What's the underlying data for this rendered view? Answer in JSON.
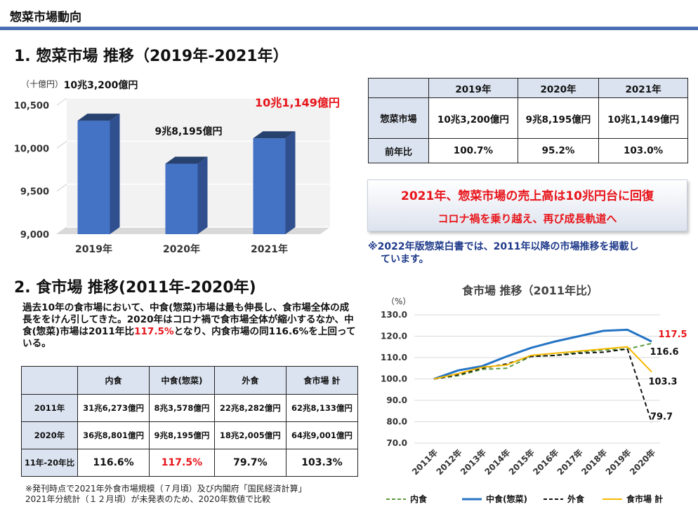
{
  "header": {
    "title": "惣菜市場動向",
    "rule_color": "#4a6fb5"
  },
  "section1": {
    "title": "1. 惣菜市場 推移（2019年-2021年）",
    "unit": "（十億円）",
    "bar_labels": [
      "10兆3,200億円",
      "9兆8,195億円",
      "10兆1,149億円"
    ]
  },
  "table1": {
    "headers": [
      "",
      "2019年",
      "2020年",
      "2021年"
    ],
    "rows": [
      {
        "label": "惣菜市場",
        "values": [
          "10兆3,200億円",
          "9兆8,195億円",
          "10兆1,149億円"
        ]
      },
      {
        "label": "前年比",
        "values": [
          "100.7%",
          "95.2%",
          "103.0%"
        ]
      }
    ]
  },
  "banner": {
    "line1": "2021年、惣菜市場の売上高は10兆円台に回復",
    "line2": "コロナ禍を乗り越え、再び成長軌道へ"
  },
  "note1": {
    "line1": "※2022年版惣菜白書では、2011年以降の市場推移を掲載し",
    "line2": "ています。"
  },
  "section2": {
    "title": "2. 食市場 推移(2011年-2020年)",
    "para_a": "過去10年の食市場において、中食(惣菜)市場は最も伸長し、食市場全体の成長ををけん引してきた。2020年はコロナ禍で食市場全体が縮小するなか、中食(惣菜)市場は2011年比",
    "para_red": "117.5%",
    "para_b": "となり、内食市場の同116.6%を上回っている。"
  },
  "table2": {
    "headers": [
      "",
      "内食",
      "中食(惣菜)",
      "外食",
      "食市場 計"
    ],
    "rows": [
      {
        "label": "2011年",
        "values": [
          "31兆6,273億円",
          "8兆3,578億円",
          "22兆8,282億円",
          "62兆8,133億円"
        ]
      },
      {
        "label": "2020年",
        "values": [
          "36兆8,801億円",
          "9兆8,195億円",
          "18兆2,005億円",
          "64兆9,001億円"
        ]
      },
      {
        "label": "11年-20年比",
        "values": [
          "116.6%",
          "117.5%",
          "79.7%",
          "103.3%"
        ]
      }
    ]
  },
  "footnote": {
    "line1": "※発刊時点で2021年外食市場規模（７月頃）及び内閣府「国民経済計算」",
    "line2": "2021年分統計（１２月頃）が未発表のため、2020年数値で比較"
  },
  "colors": {
    "red": "#e8141a",
    "bar": "#4472c4",
    "bar_side": "#2f4f8f",
    "bar_top": "#27426f",
    "navy": "#1f3a8a"
  },
  "chart_data": [
    {
      "type": "bar",
      "title": "",
      "ylabel": "（十億円）",
      "categories": [
        "2019年",
        "2020年",
        "2021年"
      ],
      "values": [
        10320,
        9819.5,
        10114.9
      ],
      "ylim": [
        9000,
        10500
      ],
      "yticks": [
        "9,000",
        "9,500",
        "10,000",
        "10,500"
      ],
      "ytick_values": [
        9000,
        9500,
        10000,
        10500
      ],
      "data_labels": [
        "10兆3,200億円",
        "9兆8,195億円",
        "10兆1,149億円"
      ],
      "highlight_index": 2,
      "grid": true
    },
    {
      "type": "line",
      "title": "食市場 推移（2011年比）",
      "ylabel": "（%）",
      "categories": [
        "2011年",
        "2012年",
        "2013年",
        "2014年",
        "2015年",
        "2016年",
        "2017年",
        "2018年",
        "2019年",
        "2020年"
      ],
      "ylim": [
        70,
        130
      ],
      "yticks": [
        "70.0",
        "80.0",
        "90.0",
        "100.0",
        "110.0",
        "120.0",
        "130.0"
      ],
      "ytick_values": [
        70,
        80,
        90,
        100,
        110,
        120,
        130
      ],
      "series": [
        {
          "name": "内食",
          "color": "#5b9a3c",
          "dash": "6,4",
          "values": [
            100,
            101.5,
            104.5,
            105,
            110.5,
            111,
            112.5,
            113.5,
            114,
            116.6
          ],
          "end_label": "116.6"
        },
        {
          "name": "中食(惣菜)",
          "color": "#2474c4",
          "dash": "",
          "values": [
            100,
            104,
            106,
            110.5,
            114.5,
            117.5,
            120,
            122.5,
            123,
            117.5
          ],
          "end_label": "117.5"
        },
        {
          "name": "外食",
          "color": "#111111",
          "dash": "6,4",
          "values": [
            100,
            102,
            105,
            107,
            110.5,
            111,
            112,
            112.5,
            114,
            79.7
          ],
          "end_label": "79.7"
        },
        {
          "name": "食市場 計",
          "color": "#f5b800",
          "dash": "",
          "values": [
            100,
            102.5,
            105.5,
            106.5,
            111,
            112,
            113,
            114,
            115,
            103.3
          ],
          "end_label": "103.3"
        }
      ],
      "legend": "bottom"
    }
  ]
}
